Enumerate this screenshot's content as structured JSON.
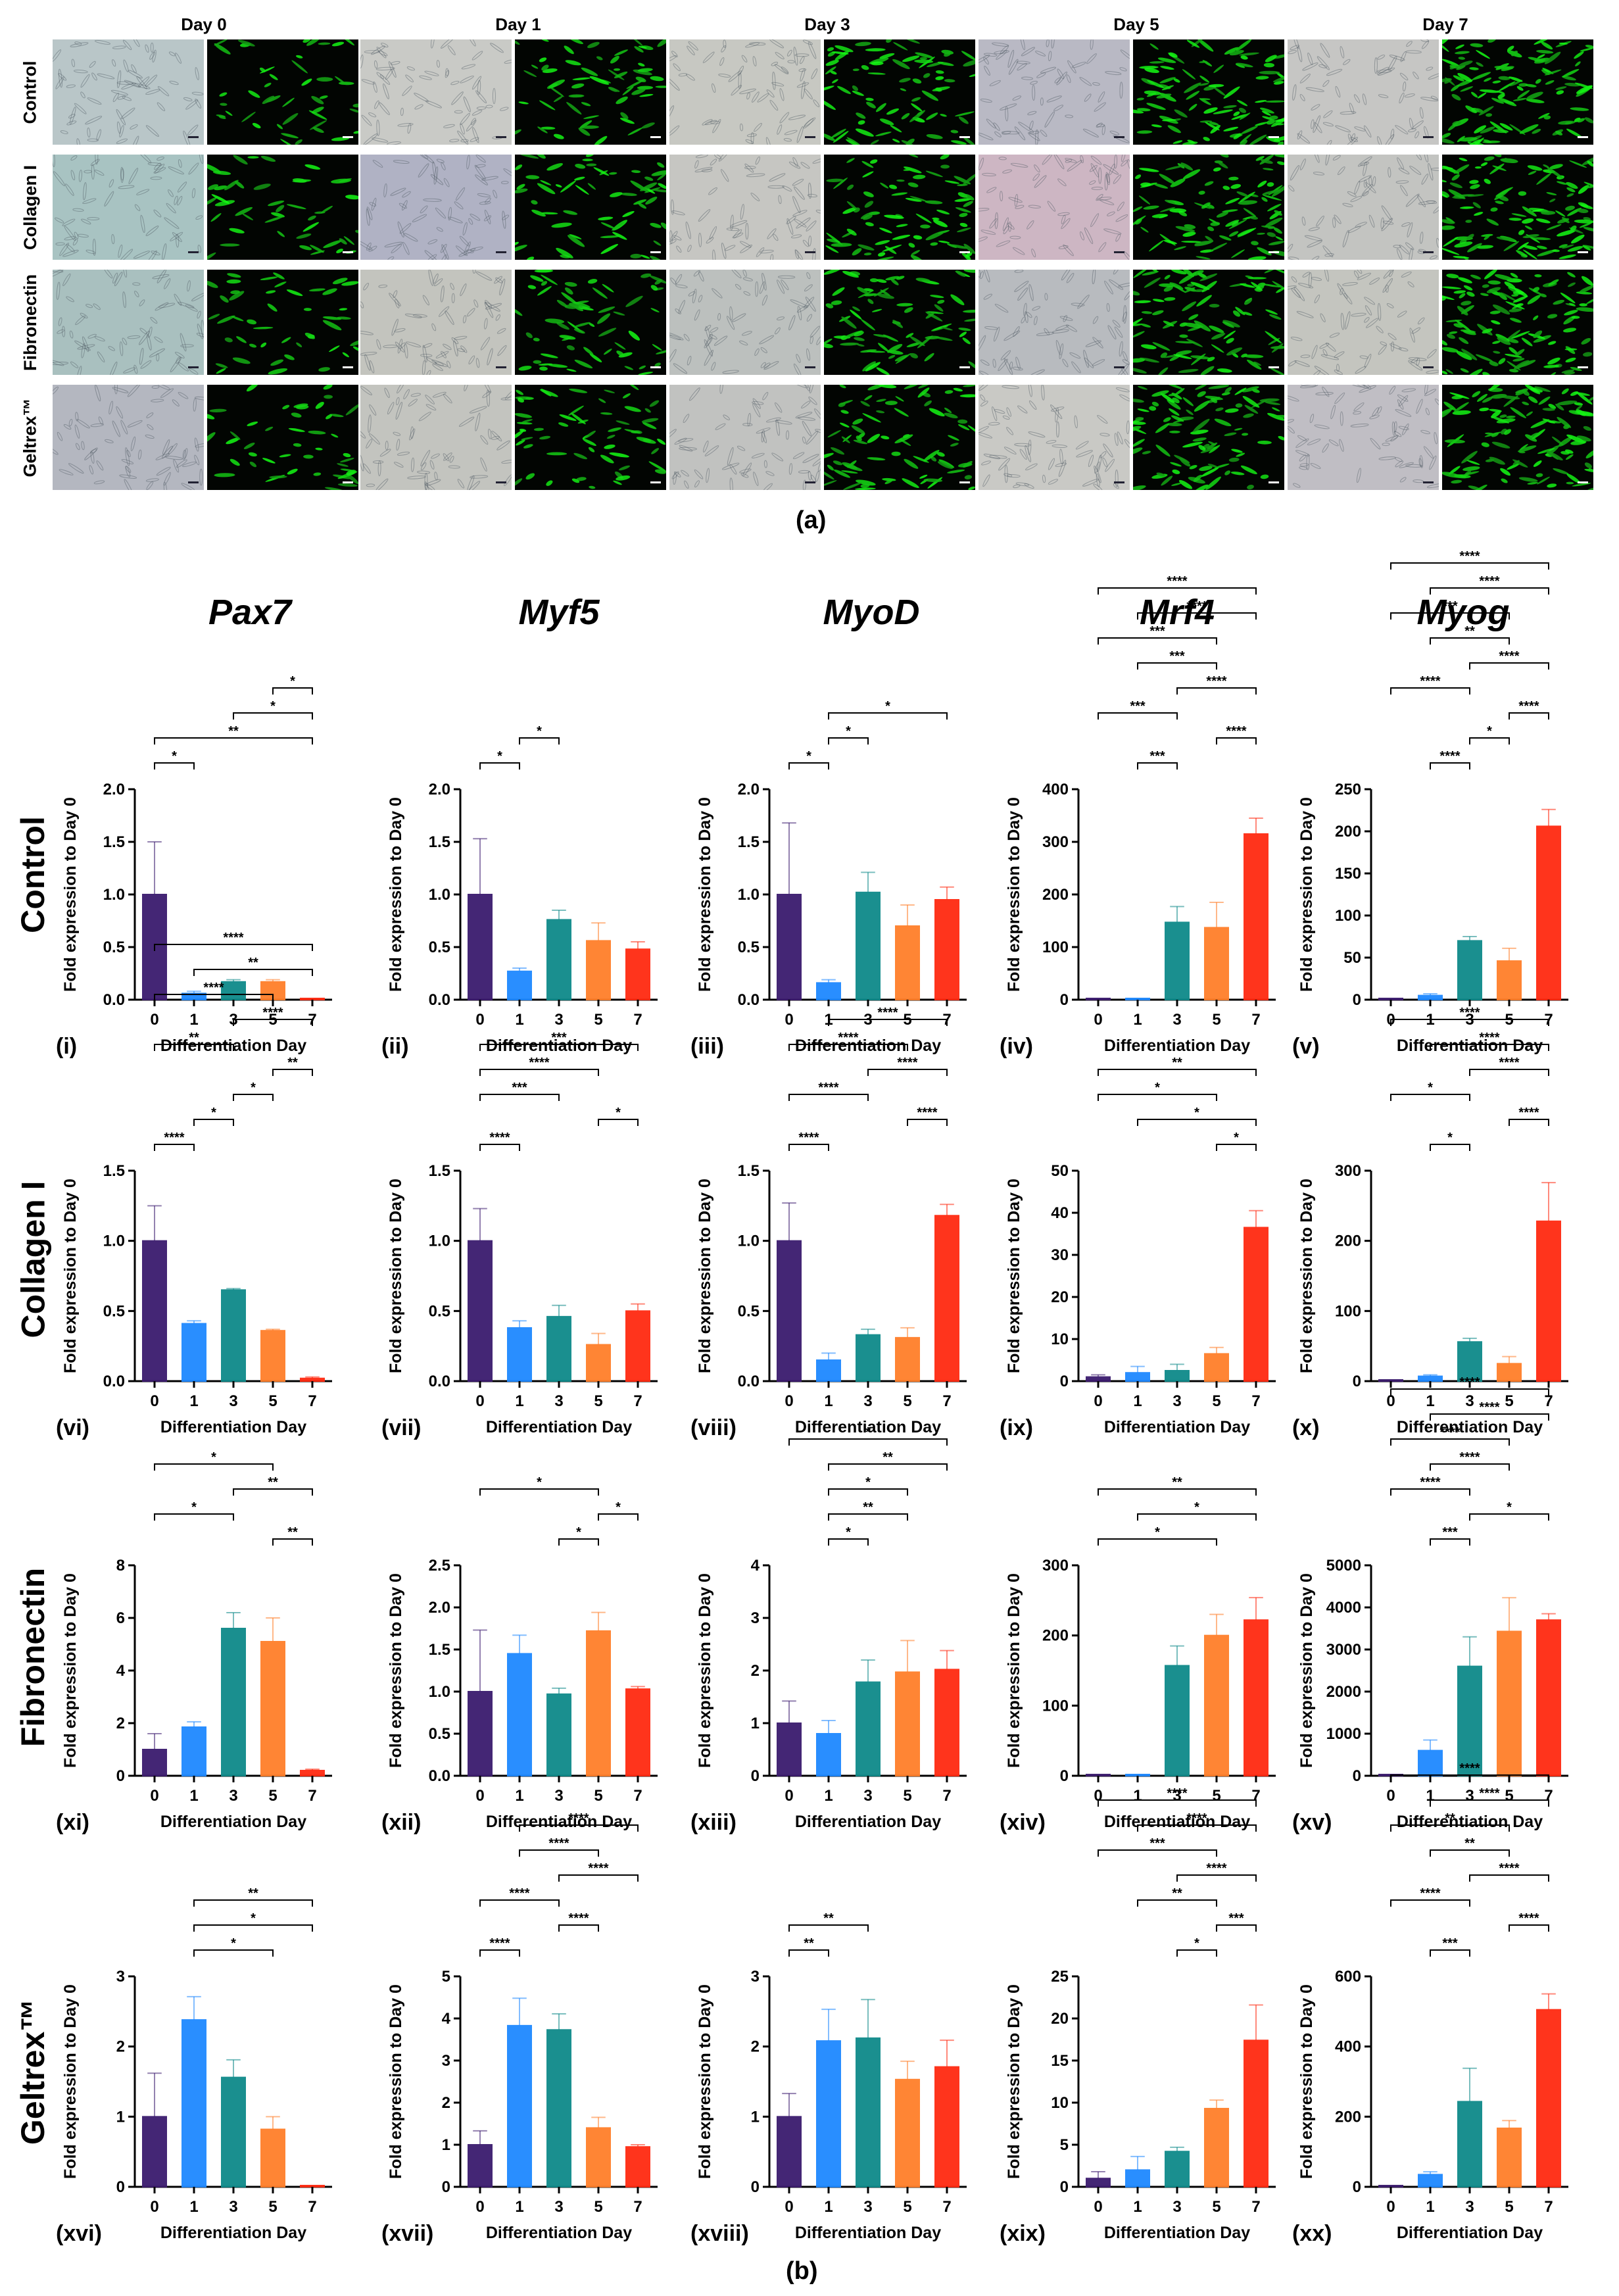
{
  "figure_a": {
    "days": [
      "Day 0",
      "Day 1",
      "Day 3",
      "Day 5",
      "Day 7"
    ],
    "rows": [
      "Control",
      "Collagen I",
      "Fibronectin",
      "Geltrex™"
    ],
    "label": "(a)"
  },
  "figure_b": {
    "label": "(b)",
    "genes": [
      "Pax7",
      "Myf5",
      "MyoD",
      "Mrf4",
      "Myog"
    ],
    "rows": [
      "Control",
      "Collagen I",
      "Fibronectin",
      "Geltrex™"
    ]
  },
  "colors": {
    "day0": "#3b1b6e",
    "day1": "#1e88ff",
    "day3": "#0e8a8a",
    "day5": "#ff7f2a",
    "day7": "#ff2a10"
  },
  "chart_data": [
    {
      "id": "i",
      "type": "bar",
      "categories": [
        "0",
        "1",
        "3",
        "5",
        "7"
      ],
      "values": [
        1.0,
        0.06,
        0.17,
        0.17,
        0.0
      ],
      "errors": [
        0.5,
        0.02,
        0.02,
        0.02,
        0.0
      ],
      "ylim": [
        0,
        2.0
      ],
      "yticks": [
        "0.0",
        "0.5",
        "1.0",
        "1.5",
        "2.0"
      ],
      "ylabel": "Fold expression to Day 0",
      "xlabel": "Differentiation Day",
      "sig": [
        [
          0,
          1,
          "*"
        ],
        [
          0,
          4,
          "**"
        ],
        [
          2,
          4,
          "*"
        ],
        [
          3,
          4,
          "*"
        ]
      ]
    },
    {
      "id": "ii",
      "type": "bar",
      "categories": [
        "0",
        "1",
        "3",
        "5",
        "7"
      ],
      "values": [
        1.0,
        0.27,
        0.76,
        0.56,
        0.48
      ],
      "errors": [
        0.53,
        0.03,
        0.09,
        0.17,
        0.07
      ],
      "ylim": [
        0,
        2.0
      ],
      "yticks": [
        "0.0",
        "0.5",
        "1.0",
        "1.5",
        "2.0"
      ],
      "ylabel": "Fold expression to Day 0",
      "xlabel": "Differentiation Day",
      "sig": [
        [
          0,
          1,
          "*"
        ],
        [
          1,
          2,
          "*"
        ]
      ]
    },
    {
      "id": "iii",
      "type": "bar",
      "categories": [
        "0",
        "1",
        "3",
        "5",
        "7"
      ],
      "values": [
        1.0,
        0.16,
        1.02,
        0.7,
        0.95
      ],
      "errors": [
        0.68,
        0.03,
        0.19,
        0.2,
        0.12
      ],
      "ylim": [
        0,
        2.0
      ],
      "yticks": [
        "0.0",
        "0.5",
        "1.0",
        "1.5",
        "2.0"
      ],
      "ylabel": "Fold expression to Day 0",
      "xlabel": "Differentiation Day",
      "sig": [
        [
          0,
          1,
          "*"
        ],
        [
          1,
          2,
          "*"
        ],
        [
          1,
          4,
          "*"
        ]
      ]
    },
    {
      "id": "iv",
      "type": "bar",
      "categories": [
        "0",
        "1",
        "3",
        "5",
        "7"
      ],
      "values": [
        1,
        1,
        147,
        137,
        315
      ],
      "errors": [
        0,
        0,
        30,
        48,
        30
      ],
      "ylim": [
        0,
        400
      ],
      "yticks": [
        "0",
        "100",
        "200",
        "300",
        "400"
      ],
      "ylabel": "Fold expression to Day 0",
      "xlabel": "Differentiation Day",
      "sig": [
        [
          1,
          2,
          "***"
        ],
        [
          3,
          4,
          "****"
        ],
        [
          0,
          2,
          "***"
        ],
        [
          2,
          4,
          "****"
        ],
        [
          1,
          3,
          "***"
        ],
        [
          0,
          3,
          "***"
        ],
        [
          1,
          4,
          "****"
        ],
        [
          0,
          4,
          "****"
        ]
      ]
    },
    {
      "id": "v",
      "type": "bar",
      "categories": [
        "0",
        "1",
        "3",
        "5",
        "7"
      ],
      "values": [
        1,
        5,
        70,
        46,
        206
      ],
      "errors": [
        0,
        2,
        5,
        15,
        20
      ],
      "ylim": [
        0,
        250
      ],
      "yticks": [
        "0",
        "50",
        "100",
        "150",
        "200",
        "250"
      ],
      "ylabel": "Fold expression to Day 0",
      "xlabel": "Differentiation Day",
      "sig": [
        [
          1,
          2,
          "****"
        ],
        [
          2,
          3,
          "*"
        ],
        [
          3,
          4,
          "****"
        ],
        [
          0,
          2,
          "****"
        ],
        [
          2,
          4,
          "****"
        ],
        [
          1,
          3,
          "**"
        ],
        [
          0,
          3,
          "***"
        ],
        [
          1,
          4,
          "****"
        ],
        [
          0,
          4,
          "****"
        ]
      ]
    },
    {
      "id": "vi",
      "type": "bar",
      "categories": [
        "0",
        "1",
        "3",
        "5",
        "7"
      ],
      "values": [
        1.0,
        0.41,
        0.65,
        0.36,
        0.02
      ],
      "errors": [
        0.25,
        0.02,
        0.01,
        0.01,
        0.01
      ],
      "ylim": [
        0,
        1.5
      ],
      "yticks": [
        "0.0",
        "0.5",
        "1.0",
        "1.5"
      ],
      "ylabel": "Fold expression to Day 0",
      "xlabel": "Differentiation Day",
      "sig": [
        [
          0,
          1,
          "****"
        ],
        [
          1,
          2,
          "*"
        ],
        [
          2,
          3,
          "*"
        ],
        [
          3,
          4,
          "**"
        ],
        [
          0,
          2,
          "**"
        ],
        [
          2,
          4,
          "****"
        ],
        [
          0,
          3,
          "****"
        ],
        [
          1,
          4,
          "**"
        ],
        [
          0,
          4,
          "****"
        ]
      ]
    },
    {
      "id": "vii",
      "type": "bar",
      "categories": [
        "0",
        "1",
        "3",
        "5",
        "7"
      ],
      "values": [
        1.0,
        0.38,
        0.46,
        0.26,
        0.5
      ],
      "errors": [
        0.23,
        0.05,
        0.08,
        0.08,
        0.05
      ],
      "ylim": [
        0,
        1.5
      ],
      "yticks": [
        "0.0",
        "0.5",
        "1.0",
        "1.5"
      ],
      "ylabel": "Fold expression to Day 0",
      "xlabel": "Differentiation Day",
      "sig": [
        [
          0,
          1,
          "****"
        ],
        [
          3,
          4,
          "*"
        ],
        [
          0,
          2,
          "***"
        ],
        [
          0,
          3,
          "****"
        ],
        [
          0,
          4,
          "***"
        ]
      ]
    },
    {
      "id": "viii",
      "type": "bar",
      "categories": [
        "0",
        "1",
        "3",
        "5",
        "7"
      ],
      "values": [
        1.0,
        0.15,
        0.33,
        0.31,
        1.18
      ],
      "errors": [
        0.27,
        0.05,
        0.04,
        0.07,
        0.08
      ],
      "ylim": [
        0,
        1.5
      ],
      "yticks": [
        "0.0",
        "0.5",
        "1.0",
        "1.5"
      ],
      "ylabel": "Fold expression to Day 0",
      "xlabel": "Differentiation Day",
      "sig": [
        [
          0,
          1,
          "****"
        ],
        [
          3,
          4,
          "****"
        ],
        [
          0,
          2,
          "****"
        ],
        [
          2,
          4,
          "****"
        ],
        [
          0,
          3,
          "****"
        ],
        [
          1,
          4,
          "****"
        ]
      ]
    },
    {
      "id": "ix",
      "type": "bar",
      "categories": [
        "0",
        "1",
        "3",
        "5",
        "7"
      ],
      "values": [
        1.0,
        2.0,
        2.5,
        6.5,
        36.5
      ],
      "errors": [
        0.5,
        1.5,
        1.5,
        1.5,
        4.0
      ],
      "ylim": [
        0,
        50
      ],
      "yticks": [
        "0",
        "10",
        "20",
        "30",
        "40",
        "50"
      ],
      "ylabel": "Fold expression to Day 0",
      "xlabel": "Differentiation Day",
      "sig": [
        [
          3,
          4,
          "*"
        ],
        [
          1,
          4,
          "*"
        ],
        [
          0,
          3,
          "*"
        ],
        [
          0,
          4,
          "**"
        ]
      ]
    },
    {
      "id": "x",
      "type": "bar",
      "categories": [
        "0",
        "1",
        "3",
        "5",
        "7"
      ],
      "values": [
        1,
        7,
        56,
        25,
        228
      ],
      "errors": [
        0,
        2,
        5,
        10,
        55
      ],
      "ylim": [
        0,
        300
      ],
      "yticks": [
        "0",
        "100",
        "200",
        "300"
      ],
      "ylabel": "Fold expression to Day 0",
      "xlabel": "Differentiation Day",
      "sig": [
        [
          1,
          2,
          "*"
        ],
        [
          3,
          4,
          "****"
        ],
        [
          0,
          2,
          "*"
        ],
        [
          2,
          4,
          "****"
        ],
        [
          1,
          4,
          "****"
        ],
        [
          0,
          4,
          "****"
        ]
      ]
    },
    {
      "id": "xi",
      "type": "bar",
      "categories": [
        "0",
        "1",
        "3",
        "5",
        "7"
      ],
      "values": [
        1.0,
        1.85,
        5.6,
        5.1,
        0.2
      ],
      "errors": [
        0.6,
        0.2,
        0.6,
        0.9,
        0.05
      ],
      "ylim": [
        0,
        8
      ],
      "yticks": [
        "0",
        "2",
        "4",
        "6",
        "8"
      ],
      "ylabel": "Fold expression to Day 0",
      "xlabel": "Differentiation Day",
      "sig": [
        [
          3,
          4,
          "**"
        ],
        [
          0,
          2,
          "*"
        ],
        [
          2,
          4,
          "**"
        ],
        [
          0,
          3,
          "*"
        ]
      ]
    },
    {
      "id": "xii",
      "type": "bar",
      "categories": [
        "0",
        "1",
        "3",
        "5",
        "7"
      ],
      "values": [
        1.0,
        1.45,
        0.97,
        1.72,
        1.03
      ],
      "errors": [
        0.73,
        0.22,
        0.07,
        0.22,
        0.03
      ],
      "ylim": [
        0,
        2.5
      ],
      "yticks": [
        "0.0",
        "0.5",
        "1.0",
        "1.5",
        "2.0",
        "2.5"
      ],
      "ylabel": "Fold expression to Day 0",
      "xlabel": "Differentiation Day",
      "sig": [
        [
          2,
          3,
          "*"
        ],
        [
          3,
          4,
          "*"
        ],
        [
          0,
          3,
          "*"
        ]
      ]
    },
    {
      "id": "xiii",
      "type": "bar",
      "categories": [
        "0",
        "1",
        "3",
        "5",
        "7"
      ],
      "values": [
        1.0,
        0.8,
        1.78,
        1.97,
        2.02
      ],
      "errors": [
        0.42,
        0.25,
        0.42,
        0.6,
        0.36
      ],
      "ylim": [
        0,
        4
      ],
      "yticks": [
        "0",
        "1",
        "2",
        "3",
        "4"
      ],
      "ylabel": "Fold expression to Day 0",
      "xlabel": "Differentiation Day",
      "sig": [
        [
          1,
          2,
          "*"
        ],
        [
          1,
          3,
          "**"
        ],
        [
          1,
          3,
          "*"
        ],
        [
          1,
          4,
          "**"
        ],
        [
          0,
          4,
          "*"
        ]
      ]
    },
    {
      "id": "xiv",
      "type": "bar",
      "categories": [
        "0",
        "1",
        "3",
        "5",
        "7"
      ],
      "values": [
        1,
        1,
        157,
        200,
        222
      ],
      "errors": [
        0,
        0,
        28,
        30,
        32
      ],
      "ylim": [
        0,
        300
      ],
      "yticks": [
        "0",
        "100",
        "200",
        "300"
      ],
      "ylabel": "Fold expression to Day 0",
      "xlabel": "Differentiation Day",
      "sig": [
        [
          0,
          3,
          "*"
        ],
        [
          1,
          4,
          "*"
        ],
        [
          0,
          4,
          "**"
        ]
      ]
    },
    {
      "id": "xv",
      "type": "bar",
      "categories": [
        "0",
        "1",
        "3",
        "5",
        "7"
      ],
      "values": [
        1,
        600,
        2600,
        3430,
        3700
      ],
      "errors": [
        0,
        250,
        700,
        800,
        150
      ],
      "ylim": [
        0,
        5000
      ],
      "yticks": [
        "0",
        "1000",
        "2000",
        "3000",
        "4000",
        "5000"
      ],
      "ylabel": "Fold expression to Day 0",
      "xlabel": "Differentiation Day",
      "sig": [
        [
          1,
          2,
          "***"
        ],
        [
          2,
          4,
          "*"
        ],
        [
          0,
          2,
          "****"
        ],
        [
          1,
          3,
          "****"
        ],
        [
          0,
          3,
          "****"
        ],
        [
          1,
          4,
          "****"
        ],
        [
          0,
          4,
          "****"
        ]
      ]
    },
    {
      "id": "xvi",
      "type": "bar",
      "categories": [
        "0",
        "1",
        "3",
        "5",
        "7"
      ],
      "values": [
        1.0,
        2.38,
        1.56,
        0.82,
        0.0
      ],
      "errors": [
        0.62,
        0.33,
        0.25,
        0.18,
        0.0
      ],
      "ylim": [
        0,
        3
      ],
      "yticks": [
        "0",
        "1",
        "2",
        "3"
      ],
      "ylabel": "Fold expression to Day 0",
      "xlabel": "Differentiation Day",
      "sig": [
        [
          1,
          3,
          "*"
        ],
        [
          1,
          4,
          "*"
        ],
        [
          1,
          4,
          "**"
        ]
      ]
    },
    {
      "id": "xvii",
      "type": "bar",
      "categories": [
        "0",
        "1",
        "3",
        "5",
        "7"
      ],
      "values": [
        1.0,
        3.83,
        3.73,
        1.4,
        0.95
      ],
      "errors": [
        0.33,
        0.65,
        0.38,
        0.25,
        0.05
      ],
      "ylim": [
        0,
        5
      ],
      "yticks": [
        "0",
        "1",
        "2",
        "3",
        "4",
        "5"
      ],
      "ylabel": "Fold expression to Day 0",
      "xlabel": "Differentiation Day",
      "sig": [
        [
          0,
          1,
          "****"
        ],
        [
          2,
          3,
          "****"
        ],
        [
          0,
          2,
          "****"
        ],
        [
          2,
          4,
          "****"
        ],
        [
          1,
          3,
          "****"
        ],
        [
          1,
          4,
          "****"
        ]
      ]
    },
    {
      "id": "xviii",
      "type": "bar",
      "categories": [
        "0",
        "1",
        "3",
        "5",
        "7"
      ],
      "values": [
        1.0,
        2.08,
        2.12,
        1.53,
        1.71
      ],
      "errors": [
        0.33,
        0.45,
        0.55,
        0.26,
        0.38
      ],
      "ylim": [
        0,
        3
      ],
      "yticks": [
        "0",
        "1",
        "2",
        "3"
      ],
      "ylabel": "Fold expression to Day 0",
      "xlabel": "Differentiation Day",
      "sig": [
        [
          0,
          1,
          "**"
        ],
        [
          0,
          2,
          "**"
        ]
      ]
    },
    {
      "id": "xix",
      "type": "bar",
      "categories": [
        "0",
        "1",
        "3",
        "5",
        "7"
      ],
      "values": [
        1.0,
        2.0,
        4.2,
        9.3,
        17.4
      ],
      "errors": [
        0.8,
        1.6,
        0.5,
        1.0,
        4.2
      ],
      "ylim": [
        0,
        25
      ],
      "yticks": [
        "0",
        "5",
        "10",
        "15",
        "20",
        "25"
      ],
      "ylabel": "Fold expression to Day 0",
      "xlabel": "Differentiation Day",
      "sig": [
        [
          2,
          3,
          "*"
        ],
        [
          3,
          4,
          "***"
        ],
        [
          1,
          3,
          "**"
        ],
        [
          2,
          4,
          "****"
        ],
        [
          0,
          3,
          "***"
        ],
        [
          1,
          4,
          "****"
        ],
        [
          0,
          4,
          "****"
        ]
      ]
    },
    {
      "id": "xx",
      "type": "bar",
      "categories": [
        "0",
        "1",
        "3",
        "5",
        "7"
      ],
      "values": [
        1,
        35,
        243,
        167,
        505
      ],
      "errors": [
        0,
        8,
        95,
        22,
        45
      ],
      "ylim": [
        0,
        600
      ],
      "yticks": [
        "0",
        "200",
        "400",
        "600"
      ],
      "ylabel": "Fold expression to Day 0",
      "xlabel": "Differentiation Day",
      "sig": [
        [
          1,
          2,
          "***"
        ],
        [
          3,
          4,
          "****"
        ],
        [
          0,
          2,
          "****"
        ],
        [
          2,
          4,
          "****"
        ],
        [
          1,
          3,
          "**"
        ],
        [
          0,
          3,
          "**"
        ],
        [
          1,
          4,
          "****"
        ],
        [
          0,
          4,
          "****"
        ]
      ]
    }
  ]
}
